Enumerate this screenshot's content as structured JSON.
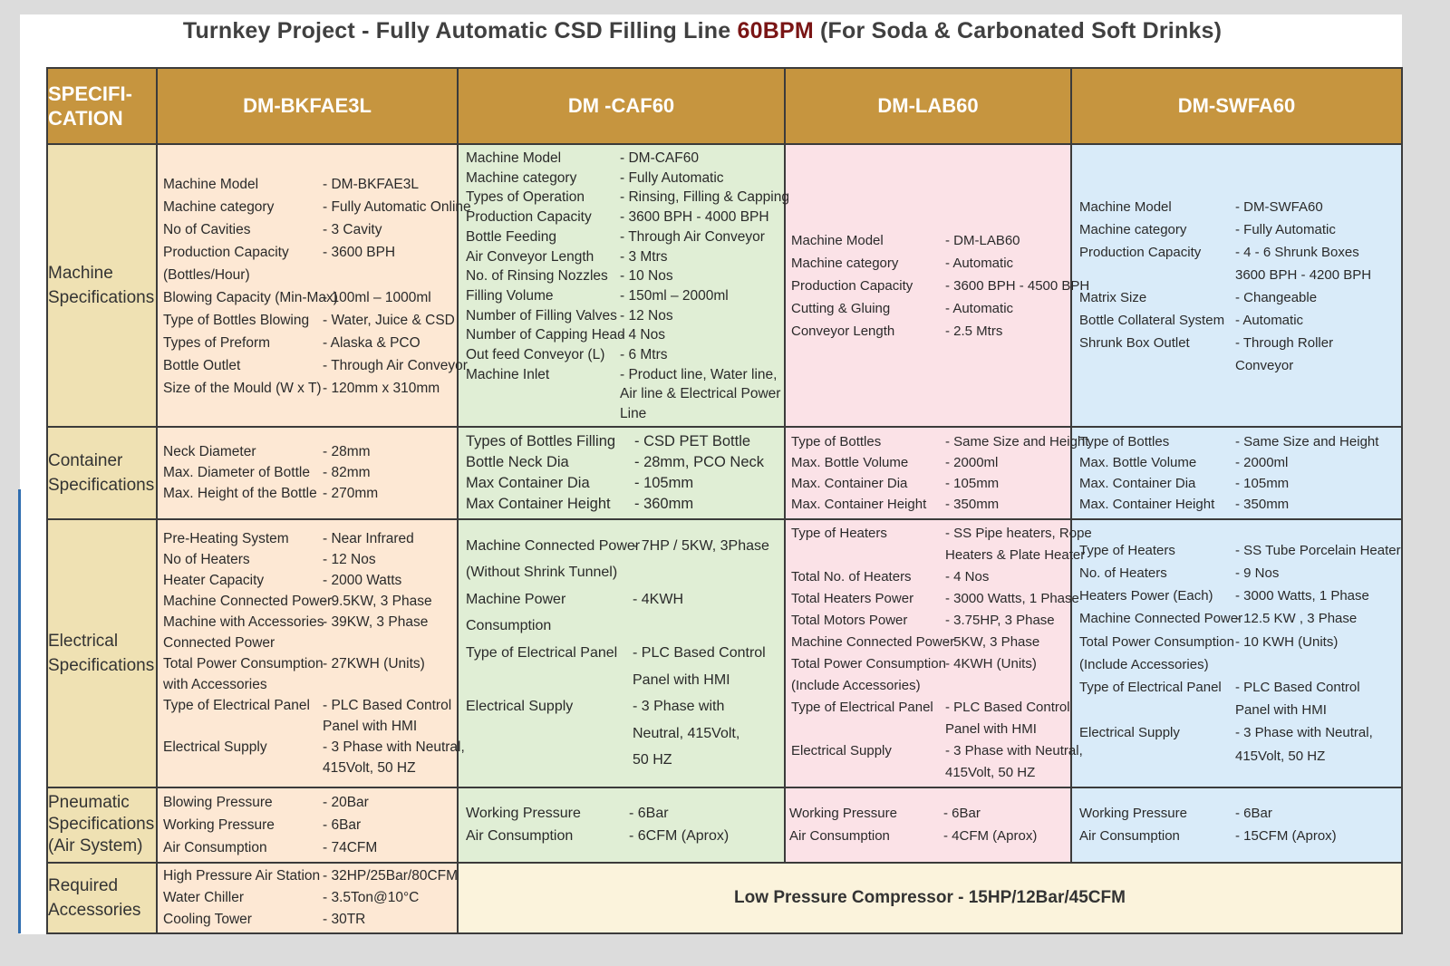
{
  "title": {
    "before": "Turnkey Project - Fully Automatic CSD Filling Line ",
    "highlight": "60BPM",
    "after": " (For Soda  & Carbonated Soft Drinks)"
  },
  "colors": {
    "header_bg": "#c6953f",
    "label_col": "#efe1b3",
    "col1": "#fde8d4",
    "col2": "#e0eed5",
    "col3": "#fbe2e7",
    "col4": "#d9ebf9",
    "title_accent": "#7a1515"
  },
  "header": {
    "spec_line1": "SPECIFI-",
    "spec_line2": "CATION",
    "columns": [
      "DM-BKFAE3L",
      "DM -CAF60",
      "DM-LAB60",
      "DM-SWFA60"
    ]
  },
  "sections": {
    "machine": {
      "label": [
        "Machine",
        "Specifications"
      ],
      "col1": [
        {
          "k": "Machine Model",
          "v": "- DM-BKFAE3L"
        },
        {
          "k": "Machine category",
          "v": "- Fully Automatic Online"
        },
        {
          "k": "No of Cavities",
          "v": "- 3 Cavity"
        },
        {
          "k": "Production Capacity",
          "v": "- 3600 BPH"
        },
        {
          "k": "(Bottles/Hour)",
          "v": ""
        },
        {
          "k": "Blowing Capacity (Min-Max)",
          "v": "- 100ml – 1000ml"
        },
        {
          "k": "Type of Bottles Blowing",
          "v": "- Water, Juice & CSD"
        },
        {
          "k": "Types of Preform",
          "v": "- Alaska & PCO"
        },
        {
          "k": "Bottle Outlet",
          "v": "- Through Air Conveyor"
        },
        {
          "k": "Size of the Mould (W x T)",
          "v": "- 120mm x 310mm"
        }
      ],
      "col2": [
        {
          "k": "Machine Model",
          "v": "- DM-CAF60"
        },
        {
          "k": "Machine category",
          "v": "- Fully Automatic"
        },
        {
          "k": "Types of Operation",
          "v": "- Rinsing, Filling & Capping"
        },
        {
          "k": "Production Capacity",
          "v": "- 3600 BPH - 4000 BPH"
        },
        {
          "k": "Bottle Feeding",
          "v": "- Through Air Conveyor"
        },
        {
          "k": "Air Conveyor Length",
          "v": "- 3 Mtrs"
        },
        {
          "k": "No. of Rinsing Nozzles",
          "v": "- 10 Nos"
        },
        {
          "k": "Filling Volume",
          "v": "- 150ml – 2000ml"
        },
        {
          "k": "Number of Filling Valves",
          "v": "- 12 Nos"
        },
        {
          "k": "Number of Capping Head",
          "v": "- 4 Nos"
        },
        {
          "k": "Out feed Conveyor (L)",
          "v": "- 6 Mtrs"
        },
        {
          "k": "Machine Inlet",
          "v": "- Product line, Water line, Air line & Electrical Power Line"
        }
      ],
      "col3": [
        {
          "k": "Machine Model",
          "v": "- DM-LAB60"
        },
        {
          "k": "Machine category",
          "v": "- Automatic"
        },
        {
          "k": "Production Capacity",
          "v": "- 3600 BPH  - 4500 BPH"
        },
        {
          "k": "Cutting & Gluing",
          "v": "- Automatic"
        },
        {
          "k": "Conveyor Length",
          "v": "- 2.5 Mtrs"
        }
      ],
      "col4": [
        {
          "k": "Machine Model",
          "v": "- DM-SWFA60"
        },
        {
          "k": "Machine category",
          "v": "- Fully Automatic"
        },
        {
          "k": "Production Capacity",
          "v": "- 4 - 6 Shrunk Boxes"
        },
        {
          "k": "",
          "v": "  3600 BPH - 4200 BPH"
        },
        {
          "k": "Matrix Size",
          "v": "-  Changeable"
        },
        {
          "k": "Bottle Collateral System",
          "v": "- Automatic"
        },
        {
          "k": "Shrunk Box Outlet",
          "v": "- Through Roller"
        },
        {
          "k": "",
          "v": "  Conveyor"
        }
      ]
    },
    "container": {
      "label": [
        "Container",
        "Specifications"
      ],
      "col1": [
        {
          "k": "Neck Diameter",
          "v": "- 28mm"
        },
        {
          "k": "Max. Diameter of Bottle",
          "v": "- 82mm"
        },
        {
          "k": "Max. Height of the Bottle",
          "v": "- 270mm"
        }
      ],
      "col2": [
        {
          "k": "Types of Bottles Filling",
          "v": "- CSD PET Bottle"
        },
        {
          "k": "Bottle Neck Dia",
          "v": "- 28mm, PCO Neck"
        },
        {
          "k": "Max Container Dia",
          "v": "- 105mm"
        },
        {
          "k": "Max Container Height",
          "v": "- 360mm"
        }
      ],
      "col3": [
        {
          "k": "Type of Bottles",
          "v": "- Same Size and Height"
        },
        {
          "k": "Max. Bottle Volume",
          "v": "- 2000ml"
        },
        {
          "k": "Max. Container Dia",
          "v": "- 105mm"
        },
        {
          "k": "Max. Container Height",
          "v": "- 350mm"
        }
      ],
      "col4": [
        {
          "k": "Type of Bottles",
          "v": "- Same Size and Height"
        },
        {
          "k": "Max. Bottle Volume",
          "v": "- 2000ml"
        },
        {
          "k": "Max. Container Dia",
          "v": "- 105mm"
        },
        {
          "k": "Max. Container Height",
          "v": "- 350mm"
        }
      ]
    },
    "electrical": {
      "label": [
        "Electrical",
        "Specifications"
      ],
      "col1": [
        {
          "k": "Pre-Heating System",
          "v": "- Near Infrared"
        },
        {
          "k": "No of Heaters",
          "v": "- 12 Nos"
        },
        {
          "k": "Heater Capacity",
          "v": "- 2000 Watts"
        },
        {
          "k": "Machine Connected Power",
          "v": "- 9.5KW, 3 Phase"
        },
        {
          "k": "Machine with Accessories",
          "v": "- 39KW, 3 Phase"
        },
        {
          "k": "Connected Power",
          "v": ""
        },
        {
          "k": "Total Power Consumption",
          "v": "- 27KWH (Units)"
        },
        {
          "k": "with Accessories",
          "v": ""
        },
        {
          "k": "Type of Electrical Panel",
          "v": "- PLC Based Control"
        },
        {
          "k": "",
          "v": "  Panel with HMI"
        },
        {
          "k": "Electrical Supply",
          "v": "- 3 Phase with Neutral,"
        },
        {
          "k": "",
          "v": "  415Volt, 50 HZ"
        }
      ],
      "col2": [
        {
          "k": "Machine Connected Power",
          "v": "- 7HP / 5KW, 3Phase"
        },
        {
          "k": "(Without Shrink Tunnel)",
          "v": ""
        },
        {
          "k": "Machine Power",
          "v": "- 4KWH"
        },
        {
          "k": "Consumption",
          "v": ""
        },
        {
          "k": "Type of Electrical Panel",
          "v": "- PLC Based Control"
        },
        {
          "k": "",
          "v": "  Panel with  HMI"
        },
        {
          "k": "Electrical Supply",
          "v": "- 3 Phase with"
        },
        {
          "k": "",
          "v": "  Neutral, 415Volt,"
        },
        {
          "k": "",
          "v": "  50 HZ"
        }
      ],
      "col3": [
        {
          "k": "Type of Heaters",
          "v": "- SS Pipe heaters, Rope"
        },
        {
          "k": "",
          "v": "  Heaters &  Plate Heater"
        },
        {
          "k": "Total No. of Heaters",
          "v": "- 4 Nos"
        },
        {
          "k": "Total Heaters Power",
          "v": "- 3000 Watts, 1 Phase"
        },
        {
          "k": "Total Motors Power",
          "v": "-  3.75HP, 3 Phase"
        },
        {
          "k": "Machine Connected Power",
          "v": "- 5KW, 3 Phase"
        },
        {
          "k": "Total Power Consumption",
          "v": "- 4KWH (Units)"
        },
        {
          "k": "(Include Accessories)",
          "v": ""
        },
        {
          "k": "Type of Electrical Panel",
          "v": "- PLC Based Control"
        },
        {
          "k": "",
          "v": "  Panel with HMI"
        },
        {
          "k": "Electrical Supply",
          "v": "- 3 Phase with Neutral,"
        },
        {
          "k": "",
          "v": "  415Volt, 50 HZ"
        }
      ],
      "col4": [
        {
          "k": "Type of Heaters",
          "v": "- SS Tube Porcelain Heater"
        },
        {
          "k": "No. of Heaters",
          "v": "- 9 Nos"
        },
        {
          "k": "Heaters Power (Each)",
          "v": "- 3000 Watts, 1 Phase"
        },
        {
          "k": "Machine Connected Power",
          "v": "- 12.5 KW , 3 Phase"
        },
        {
          "k": "Total Power Consumption",
          "v": "- 10 KWH (Units)"
        },
        {
          "k": "(Include Accessories)",
          "v": ""
        },
        {
          "k": "Type of Electrical Panel",
          "v": "- PLC Based Control"
        },
        {
          "k": "",
          "v": "  Panel with HMI"
        },
        {
          "k": "Electrical Supply",
          "v": "- 3 Phase with Neutral,"
        },
        {
          "k": "",
          "v": "  415Volt, 50 HZ"
        }
      ]
    },
    "pneumatic": {
      "label": [
        "Pneumatic",
        "Specifications",
        "(Air System)"
      ],
      "col1": [
        {
          "k": "Blowing Pressure",
          "v": "- 20Bar"
        },
        {
          "k": "Working Pressure",
          "v": "- 6Bar"
        },
        {
          "k": "Air Consumption",
          "v": "- 74CFM"
        }
      ],
      "col2": [
        {
          "k": "Working Pressure",
          "v": "- 6Bar"
        },
        {
          "k": "Air Consumption",
          "v": "- 6CFM (Aprox)"
        }
      ],
      "col3": [
        {
          "k": "Working Pressure",
          "v": "- 6Bar"
        },
        {
          "k": "Air Consumption",
          "v": "- 4CFM (Aprox)"
        }
      ],
      "col4": [
        {
          "k": "Working Pressure",
          "v": "- 6Bar"
        },
        {
          "k": "Air Consumption",
          "v": "- 15CFM (Aprox)"
        }
      ]
    },
    "accessories": {
      "label": [
        "Required",
        "Accessories"
      ],
      "col1": [
        {
          "k": "High Pressure Air Station",
          "v": "- 32HP/25Bar/80CFM"
        },
        {
          "k": "Water Chiller",
          "v": "- 3.5Ton@10°C"
        },
        {
          "k": "Cooling Tower",
          "v": "- 30TR"
        }
      ],
      "merged": "Low Pressure Compressor - 15HP/12Bar/45CFM"
    }
  }
}
